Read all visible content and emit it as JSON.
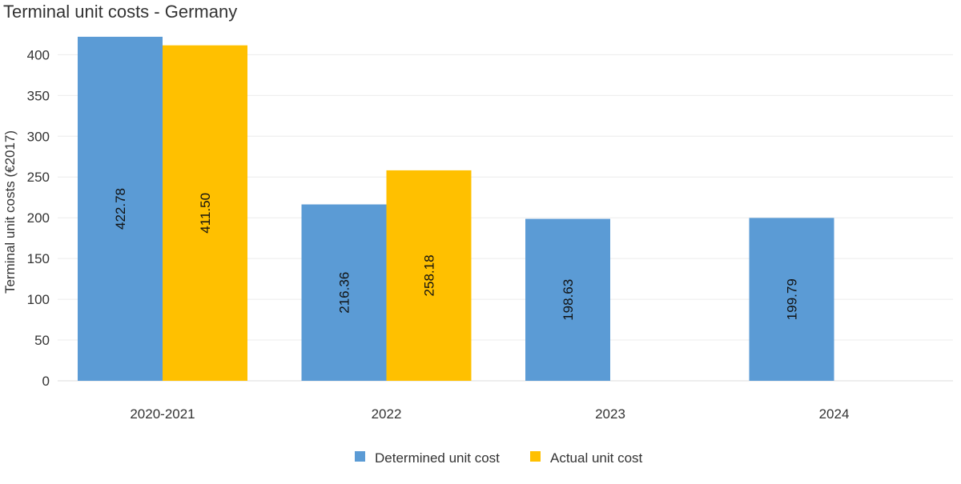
{
  "chart_data": {
    "type": "bar",
    "title": "Terminal unit costs - Germany",
    "xlabel": "",
    "ylabel": "Terminal unit costs (€2017)",
    "ylim": [
      0,
      420
    ],
    "yticks": [
      0,
      50,
      100,
      150,
      200,
      250,
      300,
      350,
      400
    ],
    "grid": true,
    "legend_position": "bottom-center",
    "categories": [
      "2020-2021",
      "2022",
      "2023",
      "2024"
    ],
    "series": [
      {
        "name": "Determined unit cost",
        "color": "#5B9BD5",
        "values": [
          422.78,
          216.36,
          198.63,
          199.79
        ],
        "labels": [
          "422.78",
          "216.36",
          "198.63",
          "199.79"
        ]
      },
      {
        "name": "Actual unit cost",
        "color": "#FFC000",
        "values": [
          411.5,
          258.18,
          null,
          null
        ],
        "labels": [
          "411.50",
          "258.18",
          "",
          ""
        ]
      }
    ]
  }
}
